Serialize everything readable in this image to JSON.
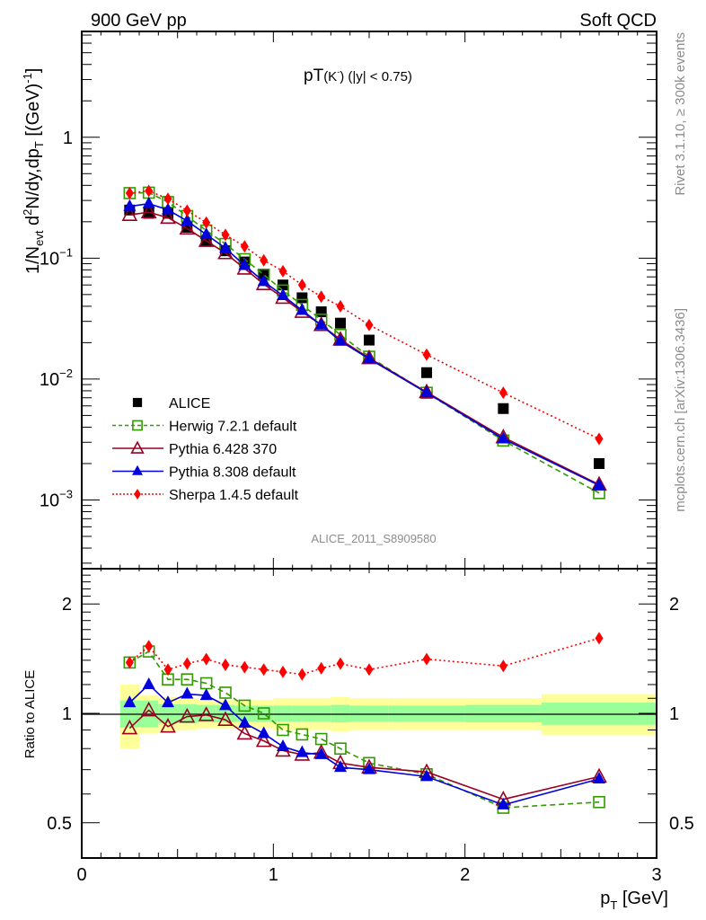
{
  "header": {
    "left": "900 GeV pp",
    "right": "Soft QCD"
  },
  "side_labels": {
    "rivet": "Rivet 3.1.10, ≥ 300k events",
    "mcplots": "mcplots.cern.ch [arXiv:1306.3436]"
  },
  "analysis_id": "ALICE_2011_S8909580",
  "chart_data": [
    {
      "type": "scatter",
      "panel": "main",
      "title": "pT(K⁻) (|y| < 0.75)",
      "title_parts": {
        "main": "pT",
        "particle": "(K",
        "sup": "-",
        "cut": ") (|y| < 0.75)"
      },
      "xlabel": "p_T [GeV]",
      "ylabel": "1/N_evt d²N/dy,dp_T [(GeV)⁻¹]",
      "ylabel_parts": {
        "a": "1/N",
        "a_sub": "evt",
        "b": " d",
        "b_sup": "2",
        "c": "N/dy,dp",
        "c_sub": "T",
        "d": " [(GeV)",
        "d_sup": "-1",
        "e": "]"
      },
      "xlim": [
        0,
        3
      ],
      "ylim": [
        0.00027,
        7.5
      ],
      "yscale": "log",
      "ytick_labels": [
        {
          "value": 1,
          "base": "1",
          "exp": ""
        },
        {
          "value": 0.1,
          "base": "10",
          "exp": "−1"
        },
        {
          "value": 0.01,
          "base": "10",
          "exp": "−2"
        },
        {
          "value": 0.001,
          "base": "10",
          "exp": "−3"
        }
      ],
      "legend_position": "bottom-left",
      "x": [
        0.25,
        0.35,
        0.45,
        0.55,
        0.65,
        0.75,
        0.85,
        0.95,
        1.05,
        1.15,
        1.25,
        1.35,
        1.5,
        1.8,
        2.2,
        2.7
      ],
      "series": [
        {
          "name": "ALICE",
          "color": "#000000",
          "marker": "filled-square",
          "line": "none",
          "values": [
            0.25,
            0.235,
            0.235,
            0.18,
            0.14,
            0.115,
            0.093,
            0.073,
            0.06,
            0.047,
            0.036,
            0.029,
            0.021,
            0.0113,
            0.0057,
            0.002
          ]
        },
        {
          "name": "Herwig 7.2.1 default",
          "color": "#339900",
          "marker": "open-square",
          "line": "dashed",
          "values": [
            0.345,
            0.348,
            0.291,
            0.223,
            0.169,
            0.131,
            0.098,
            0.073,
            0.054,
            0.041,
            0.031,
            0.0232,
            0.0153,
            0.0077,
            0.0031,
            0.00114
          ]
        },
        {
          "name": "Pythia 6.428 370",
          "color": "#990022",
          "marker": "open-triangle",
          "line": "solid",
          "values": [
            0.228,
            0.24,
            0.216,
            0.176,
            0.139,
            0.11,
            0.082,
            0.061,
            0.047,
            0.036,
            0.028,
            0.0212,
            0.0149,
            0.0078,
            0.0033,
            0.00134
          ]
        },
        {
          "name": "Pythia 8.308 default",
          "color": "#0000dd",
          "marker": "filled-triangle",
          "line": "solid",
          "values": [
            0.268,
            0.282,
            0.251,
            0.203,
            0.157,
            0.121,
            0.087,
            0.064,
            0.049,
            0.037,
            0.028,
            0.0206,
            0.0147,
            0.0077,
            0.0032,
            0.00132
          ]
        },
        {
          "name": "Sherpa 1.4.5 default",
          "color": "#ff0000",
          "marker": "filled-diamond",
          "line": "dotted",
          "values": [
            0.345,
            0.36,
            0.31,
            0.247,
            0.197,
            0.156,
            0.125,
            0.096,
            0.078,
            0.06,
            0.048,
            0.04,
            0.028,
            0.0159,
            0.0077,
            0.0032
          ]
        }
      ]
    },
    {
      "type": "scatter",
      "panel": "ratio",
      "ylabel": "Ratio to ALICE",
      "xlabel": "p_T [GeV]",
      "xlim": [
        0,
        3
      ],
      "ylim": [
        0.4,
        2.5
      ],
      "yscale": "log",
      "xtick_labels": [
        "0",
        "1",
        "2",
        "3"
      ],
      "ytick_labels": [
        "0.5",
        "1",
        "2"
      ],
      "reference_line": 1,
      "x": [
        0.25,
        0.35,
        0.45,
        0.55,
        0.65,
        0.75,
        0.85,
        0.95,
        1.05,
        1.15,
        1.25,
        1.35,
        1.5,
        1.8,
        2.2,
        2.7
      ],
      "bands": {
        "edges": [
          0.2,
          0.3,
          0.4,
          0.5,
          0.6,
          0.7,
          0.8,
          0.9,
          1.0,
          1.1,
          1.2,
          1.3,
          1.4,
          1.6,
          2.0,
          2.4,
          3.0
        ],
        "stat_color": "#99ff99",
        "total_color": "#ffff99",
        "stat_half_width": [
          0.085,
          0.085,
          0.06,
          0.06,
          0.055,
          0.055,
          0.05,
          0.05,
          0.05,
          0.05,
          0.05,
          0.055,
          0.05,
          0.05,
          0.055,
          0.07
        ],
        "total_half_width": [
          0.2,
          0.12,
          0.11,
          0.1,
          0.09,
          0.09,
          0.09,
          0.09,
          0.1,
          0.1,
          0.1,
          0.11,
          0.1,
          0.1,
          0.1,
          0.13
        ]
      },
      "series": [
        {
          "name": "Herwig 7.2.1 default",
          "color": "#339900",
          "marker": "open-square",
          "line": "dashed",
          "values": [
            1.38,
            1.48,
            1.24,
            1.24,
            1.21,
            1.14,
            1.05,
            1.0,
            0.9,
            0.875,
            0.85,
            0.8,
            0.73,
            0.68,
            0.55,
            0.57
          ]
        },
        {
          "name": "Pythia 6.428 370",
          "color": "#990022",
          "marker": "open-triangle",
          "line": "solid",
          "values": [
            0.91,
            1.02,
            0.92,
            0.98,
            0.99,
            0.96,
            0.88,
            0.84,
            0.79,
            0.77,
            0.78,
            0.73,
            0.71,
            0.69,
            0.58,
            0.67
          ]
        },
        {
          "name": "Pythia 8.308 default",
          "color": "#0000dd",
          "marker": "filled-triangle",
          "line": "solid",
          "values": [
            1.07,
            1.2,
            1.07,
            1.13,
            1.12,
            1.05,
            0.94,
            0.88,
            0.81,
            0.78,
            0.77,
            0.71,
            0.7,
            0.67,
            0.56,
            0.66
          ]
        },
        {
          "name": "Sherpa 1.4.5 default",
          "color": "#ff0000",
          "marker": "filled-diamond",
          "line": "dotted",
          "values": [
            1.38,
            1.53,
            1.32,
            1.37,
            1.41,
            1.36,
            1.34,
            1.32,
            1.3,
            1.28,
            1.33,
            1.37,
            1.32,
            1.41,
            1.35,
            1.61
          ]
        }
      ]
    }
  ]
}
